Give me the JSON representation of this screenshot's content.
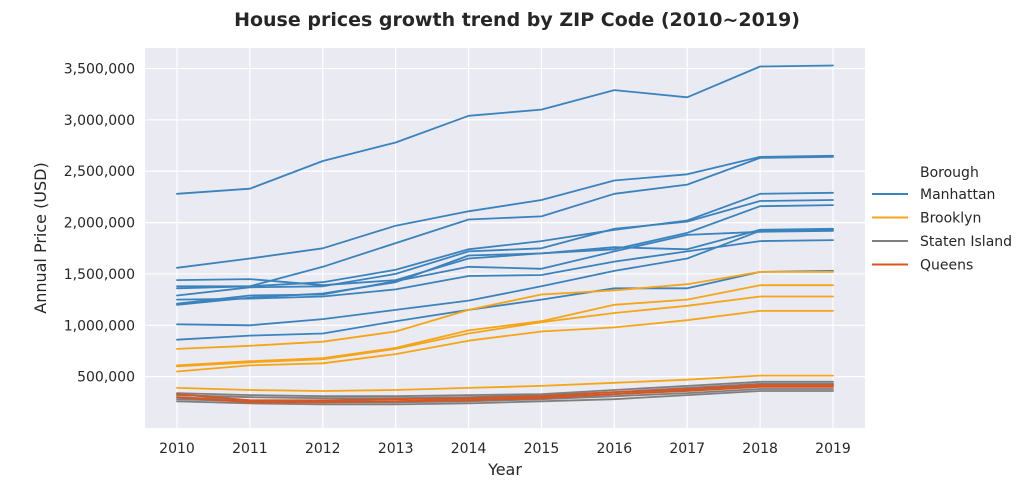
{
  "chart_data": {
    "type": "line",
    "title": "House prices growth trend by ZIP Code (2010~2019)",
    "xlabel": "Year",
    "ylabel": "Annual Price (USD)",
    "x": [
      2010,
      2011,
      2012,
      2013,
      2014,
      2015,
      2016,
      2017,
      2018,
      2019
    ],
    "x_tick_labels": [
      "2010",
      "2011",
      "2012",
      "2013",
      "2014",
      "2015",
      "2016",
      "2017",
      "2018",
      "2019"
    ],
    "ylim": [
      0,
      3700000
    ],
    "y_ticks": [
      500000,
      1000000,
      1500000,
      2000000,
      2500000,
      3000000,
      3500000
    ],
    "y_tick_labels": [
      "500,000",
      "1,000,000",
      "1,500,000",
      "2,000,000",
      "2,500,000",
      "3,000,000",
      "3,500,000"
    ],
    "grid": true,
    "legend": {
      "title": "Borough",
      "placement": "right",
      "entries": [
        {
          "name": "Manhattan",
          "color": "#3a83bd"
        },
        {
          "name": "Brooklyn",
          "color": "#f5a516"
        },
        {
          "name": "Staten Island",
          "color": "#7f7f7f"
        },
        {
          "name": "Queens",
          "color": "#d9541e"
        }
      ]
    },
    "series": [
      {
        "group": "Manhattan",
        "color": "#3a83bd",
        "values": [
          2280000,
          2330000,
          2600000,
          2780000,
          3040000,
          3100000,
          3290000,
          3220000,
          3520000,
          3530000
        ]
      },
      {
        "group": "Manhattan",
        "color": "#3a83bd",
        "values": [
          1560000,
          1650000,
          1750000,
          1970000,
          2110000,
          2220000,
          2410000,
          2470000,
          2640000,
          2650000
        ]
      },
      {
        "group": "Manhattan",
        "color": "#3a83bd",
        "values": [
          1360000,
          1380000,
          1570000,
          1800000,
          2030000,
          2060000,
          2280000,
          2370000,
          2630000,
          2640000
        ]
      },
      {
        "group": "Manhattan",
        "color": "#3a83bd",
        "values": [
          1380000,
          1380000,
          1420000,
          1540000,
          1740000,
          1820000,
          1930000,
          2020000,
          2280000,
          2290000
        ]
      },
      {
        "group": "Manhattan",
        "color": "#3a83bd",
        "values": [
          1290000,
          1370000,
          1380000,
          1500000,
          1720000,
          1750000,
          1940000,
          2010000,
          2210000,
          2220000
        ]
      },
      {
        "group": "Manhattan",
        "color": "#3a83bd",
        "values": [
          1200000,
          1270000,
          1310000,
          1420000,
          1680000,
          1700000,
          1740000,
          1900000,
          2160000,
          2170000
        ]
      },
      {
        "group": "Manhattan",
        "color": "#3a83bd",
        "values": [
          1440000,
          1450000,
          1390000,
          1440000,
          1650000,
          1700000,
          1760000,
          1740000,
          1930000,
          1940000
        ]
      },
      {
        "group": "Manhattan",
        "color": "#3a83bd",
        "values": [
          1210000,
          1290000,
          1300000,
          1430000,
          1570000,
          1550000,
          1720000,
          1880000,
          1910000,
          1920000
        ]
      },
      {
        "group": "Manhattan",
        "color": "#3a83bd",
        "values": [
          1250000,
          1260000,
          1280000,
          1350000,
          1480000,
          1490000,
          1620000,
          1720000,
          1820000,
          1830000
        ]
      },
      {
        "group": "Manhattan",
        "color": "#3a83bd",
        "values": [
          1010000,
          1000000,
          1060000,
          1150000,
          1240000,
          1380000,
          1530000,
          1650000,
          1920000,
          1930000
        ]
      },
      {
        "group": "Manhattan",
        "color": "#3a83bd",
        "values": [
          860000,
          900000,
          920000,
          1040000,
          1150000,
          1250000,
          1360000,
          1360000,
          1520000,
          1530000
        ]
      },
      {
        "group": "Brooklyn",
        "color": "#f5a516",
        "values": [
          770000,
          800000,
          840000,
          940000,
          1150000,
          1300000,
          1340000,
          1400000,
          1520000,
          1520000
        ]
      },
      {
        "group": "Brooklyn",
        "color": "#f5a516",
        "values": [
          610000,
          650000,
          680000,
          780000,
          950000,
          1040000,
          1200000,
          1250000,
          1390000,
          1390000
        ]
      },
      {
        "group": "Brooklyn",
        "color": "#f5a516",
        "values": [
          600000,
          640000,
          670000,
          770000,
          920000,
          1030000,
          1120000,
          1190000,
          1280000,
          1280000
        ]
      },
      {
        "group": "Brooklyn",
        "color": "#f5a516",
        "values": [
          550000,
          610000,
          630000,
          720000,
          850000,
          940000,
          980000,
          1050000,
          1140000,
          1140000
        ]
      },
      {
        "group": "Brooklyn",
        "color": "#f5a516",
        "values": [
          390000,
          370000,
          360000,
          370000,
          390000,
          410000,
          440000,
          470000,
          510000,
          510000
        ]
      },
      {
        "group": "Staten Island",
        "color": "#7f7f7f",
        "values": [
          340000,
          320000,
          310000,
          310000,
          320000,
          330000,
          370000,
          410000,
          450000,
          450000
        ]
      },
      {
        "group": "Staten Island",
        "color": "#7f7f7f",
        "values": [
          320000,
          300000,
          290000,
          290000,
          300000,
          320000,
          350000,
          390000,
          430000,
          430000
        ]
      },
      {
        "group": "Staten Island",
        "color": "#7f7f7f",
        "values": [
          300000,
          270000,
          260000,
          260000,
          280000,
          300000,
          330000,
          370000,
          410000,
          410000
        ]
      },
      {
        "group": "Staten Island",
        "color": "#7f7f7f",
        "values": [
          260000,
          240000,
          230000,
          230000,
          240000,
          260000,
          280000,
          320000,
          360000,
          360000
        ]
      },
      {
        "group": "Staten Island",
        "color": "#7f7f7f",
        "values": [
          280000,
          260000,
          250000,
          250000,
          260000,
          280000,
          310000,
          340000,
          380000,
          380000
        ]
      },
      {
        "group": "Queens",
        "color": "#d9541e",
        "values": [
          330000,
          270000,
          270000,
          280000,
          290000,
          310000,
          350000,
          380000,
          420000,
          420000
        ]
      },
      {
        "group": "Queens",
        "color": "#d9541e",
        "values": [
          300000,
          250000,
          250000,
          260000,
          270000,
          290000,
          330000,
          360000,
          400000,
          400000
        ]
      }
    ]
  }
}
